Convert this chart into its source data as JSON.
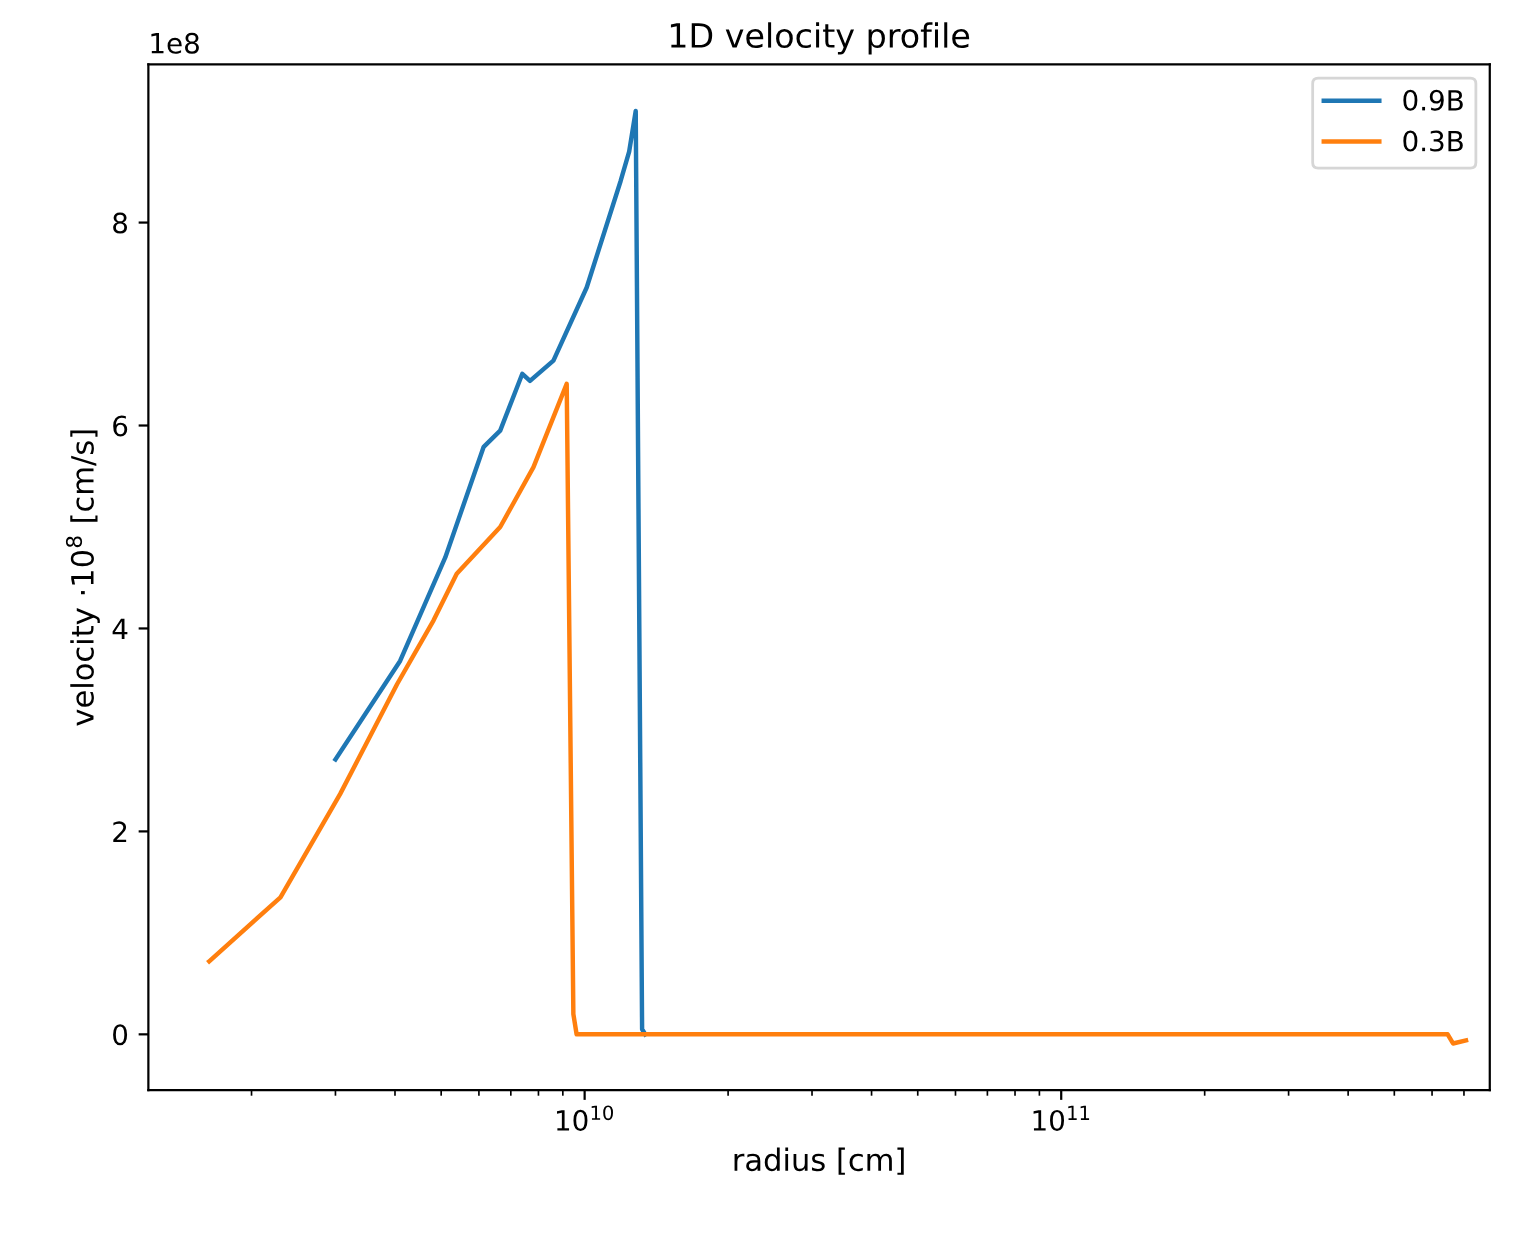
{
  "chart_data": {
    "type": "line",
    "title": "1D velocity profile",
    "xlabel": "radius [cm]",
    "ylabel": "velocity ·10$^{8}$ [cm/s]",
    "annotations": [
      "1e8"
    ],
    "log": "x",
    "xlim": [
      1215000000.0,
      793000000000.0
    ],
    "xticks": [
      {
        "value": 10000000000.0,
        "label": "10$^{10}$"
      },
      {
        "value": 100000000000.0,
        "label": "10$^{11}$"
      }
    ],
    "ylim": [
      -0.55,
      9.56
    ],
    "yticks": [
      0,
      2,
      4,
      6,
      8
    ],
    "grid": false,
    "legend": "top right",
    "series": [
      {
        "name": "0.9B",
        "color": "#1f77b4",
        "x": [
          3000000000.0,
          4100000000.0,
          5100000000.0,
          6140000000.0,
          6650000000.0,
          7400000000.0,
          7680000000.0,
          8600000000.0,
          10100000000.0,
          11900000000.0,
          12400000000.0,
          12800000000.0,
          13200000000.0,
          13400000000.0
        ],
        "values": [
          2.71,
          3.68,
          4.7,
          5.79,
          5.95,
          6.51,
          6.44,
          6.64,
          7.36,
          8.41,
          8.7,
          9.1,
          0.05,
          0
        ]
      },
      {
        "name": "0.3B",
        "color": "#ff7f0e",
        "x": [
          1630000000.0,
          2300000000.0,
          3070000000.0,
          4040000000.0,
          4820000000.0,
          5390000000.0,
          6650000000.0,
          7810000000.0,
          9170000000.0,
          9470000000.0,
          9620000000.0,
          647000000000.0,
          664000000000.0,
          707000000000.0
        ],
        "values": [
          0.72,
          1.35,
          2.37,
          3.45,
          4.08,
          4.54,
          5.0,
          5.59,
          6.41,
          0.2,
          0,
          0,
          -0.09,
          -0.06
        ]
      }
    ]
  }
}
